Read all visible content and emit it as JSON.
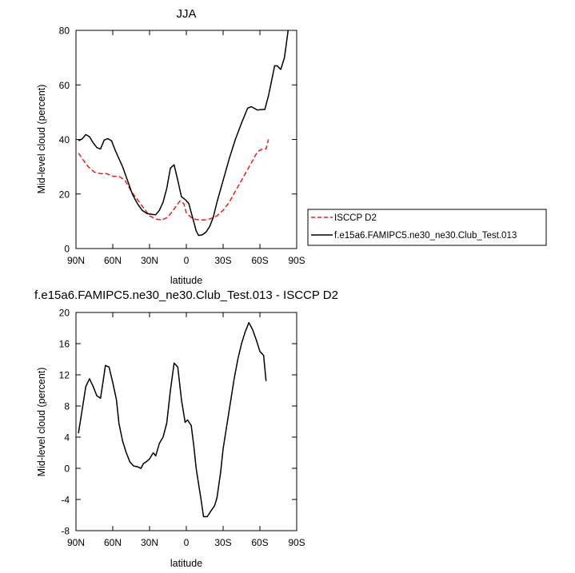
{
  "chart_data": [
    {
      "type": "line",
      "title": "JJA",
      "xlabel": "latitude",
      "ylabel": "Mid-level cloud (percent)",
      "xlim": [
        90,
        -90
      ],
      "ylim": [
        0,
        80
      ],
      "xticks": [
        {
          "value": 90,
          "label": "90N"
        },
        {
          "value": 60,
          "label": "60N"
        },
        {
          "value": 30,
          "label": "30N"
        },
        {
          "value": 0,
          "label": "0"
        },
        {
          "value": -30,
          "label": "30S"
        },
        {
          "value": -60,
          "label": "60S"
        },
        {
          "value": -90,
          "label": "90S"
        }
      ],
      "yticks": [
        0,
        20,
        40,
        60,
        80
      ],
      "legend_position": "right",
      "grid": false,
      "series": [
        {
          "name": "ISCCP D2",
          "color": "#e8201c",
          "dash": "dashed",
          "points": [
            [
              88,
              35
            ],
            [
              85,
              33
            ],
            [
              80,
              30
            ],
            [
              75,
              28
            ],
            [
              70,
              27.5
            ],
            [
              65,
              27.5
            ],
            [
              60,
              26.5
            ],
            [
              55,
              26.5
            ],
            [
              50,
              25
            ],
            [
              45,
              21
            ],
            [
              40,
              18
            ],
            [
              35,
              15
            ],
            [
              30,
              12
            ],
            [
              25,
              10.8
            ],
            [
              20,
              10.5
            ],
            [
              15,
              11.5
            ],
            [
              10,
              14.5
            ],
            [
              5,
              17.5
            ],
            [
              2,
              16.5
            ],
            [
              0,
              13
            ],
            [
              -5,
              11
            ],
            [
              -10,
              10.5
            ],
            [
              -15,
              10.5
            ],
            [
              -20,
              11
            ],
            [
              -25,
              12
            ],
            [
              -30,
              14
            ],
            [
              -35,
              17
            ],
            [
              -40,
              21
            ],
            [
              -45,
              25
            ],
            [
              -50,
              29
            ],
            [
              -55,
              33
            ],
            [
              -58,
              35.5
            ],
            [
              -62,
              36.5
            ],
            [
              -65,
              36.5
            ],
            [
              -67,
              40
            ]
          ]
        },
        {
          "name": "f.e15a6.FAMIPC5.ne30_ne30.Club_Test.013",
          "color": "#000000",
          "dash": "solid",
          "points": [
            [
              88,
              39.5
            ],
            [
              85,
              40.2
            ],
            [
              82,
              41.8
            ],
            [
              79,
              41
            ],
            [
              76,
              38.8
            ],
            [
              73,
              37
            ],
            [
              70,
              36.5
            ],
            [
              67,
              39.8
            ],
            [
              64,
              40.3
            ],
            [
              61,
              39.5
            ],
            [
              58,
              36
            ],
            [
              55,
              33
            ],
            [
              52,
              30
            ],
            [
              48,
              25
            ],
            [
              44,
              20
            ],
            [
              40,
              16.5
            ],
            [
              36,
              14
            ],
            [
              32,
              12.8
            ],
            [
              28,
              12.5
            ],
            [
              25,
              12.4
            ],
            [
              22,
              14
            ],
            [
              19,
              17
            ],
            [
              16,
              22
            ],
            [
              13,
              29.5
            ],
            [
              10,
              30.7
            ],
            [
              7,
              25
            ],
            [
              4,
              19
            ],
            [
              1,
              18
            ],
            [
              -2,
              16.5
            ],
            [
              -5,
              11.5
            ],
            [
              -8,
              6.5
            ],
            [
              -10,
              4.8
            ],
            [
              -13,
              5
            ],
            [
              -16,
              6
            ],
            [
              -19,
              8
            ],
            [
              -22,
              11.5
            ],
            [
              -25,
              17
            ],
            [
              -30,
              25
            ],
            [
              -35,
              33
            ],
            [
              -40,
              40
            ],
            [
              -45,
              46
            ],
            [
              -50,
              51.5
            ],
            [
              -53,
              52
            ],
            [
              -58,
              50.8
            ],
            [
              -62,
              51
            ],
            [
              -64,
              51
            ],
            [
              -67,
              56
            ],
            [
              -70,
              62.5
            ],
            [
              -72,
              67
            ],
            [
              -74,
              67
            ],
            [
              -77,
              65.7
            ],
            [
              -80,
              70
            ],
            [
              -83,
              80
            ]
          ]
        }
      ]
    },
    {
      "type": "line",
      "title": "f.e15a6.FAMIPC5.ne30_ne30.Club_Test.013 - ISCCP D2",
      "xlabel": "latitude",
      "ylabel": "Mid-level cloud (percent)",
      "xlim": [
        90,
        -90
      ],
      "ylim": [
        -8,
        20
      ],
      "xticks": [
        {
          "value": 90,
          "label": "90N"
        },
        {
          "value": 60,
          "label": "60N"
        },
        {
          "value": 30,
          "label": "30N"
        },
        {
          "value": 0,
          "label": "0"
        },
        {
          "value": -30,
          "label": "30S"
        },
        {
          "value": -60,
          "label": "60S"
        },
        {
          "value": -90,
          "label": "90S"
        }
      ],
      "yticks": [
        -8,
        -4,
        0,
        4,
        8,
        12,
        16,
        20
      ],
      "grid": false,
      "series": [
        {
          "color": "#000000",
          "dash": "solid",
          "points": [
            [
              88,
              4.5
            ],
            [
              85,
              7.5
            ],
            [
              82,
              10.5
            ],
            [
              79,
              11.5
            ],
            [
              76,
              10.5
            ],
            [
              73,
              9.3
            ],
            [
              70,
              9
            ],
            [
              68,
              11
            ],
            [
              66,
              13.2
            ],
            [
              63,
              13
            ],
            [
              60,
              11
            ],
            [
              57,
              8.8
            ],
            [
              55,
              5.8
            ],
            [
              52,
              3.5
            ],
            [
              49,
              2
            ],
            [
              46,
              0.8
            ],
            [
              43,
              0.3
            ],
            [
              40,
              0.2
            ],
            [
              37,
              0
            ],
            [
              35,
              0.6
            ],
            [
              33,
              0.8
            ],
            [
              30,
              1.2
            ],
            [
              27,
              2
            ],
            [
              25,
              1.6
            ],
            [
              22,
              3.2
            ],
            [
              19,
              4
            ],
            [
              16,
              5.8
            ],
            [
              13,
              10
            ],
            [
              10,
              13.5
            ],
            [
              7,
              13
            ],
            [
              4,
              8.8
            ],
            [
              1,
              5.9
            ],
            [
              -1,
              6.2
            ],
            [
              -4,
              5.5
            ],
            [
              -6,
              3
            ],
            [
              -8,
              0
            ],
            [
              -10,
              -2
            ],
            [
              -12,
              -4
            ],
            [
              -14,
              -6.2
            ],
            [
              -17,
              -6.2
            ],
            [
              -20,
              -5.5
            ],
            [
              -23,
              -4.8
            ],
            [
              -25,
              -3.8
            ],
            [
              -28,
              -0.5
            ],
            [
              -30,
              2.5
            ],
            [
              -33,
              5.5
            ],
            [
              -36,
              8.5
            ],
            [
              -39,
              11.5
            ],
            [
              -42,
              14
            ],
            [
              -45,
              16
            ],
            [
              -48,
              17.5
            ],
            [
              -51,
              18.7
            ],
            [
              -54,
              17.8
            ],
            [
              -57,
              16.5
            ],
            [
              -60,
              15
            ],
            [
              -63,
              14.5
            ],
            [
              -65,
              11.2
            ]
          ]
        }
      ]
    }
  ]
}
